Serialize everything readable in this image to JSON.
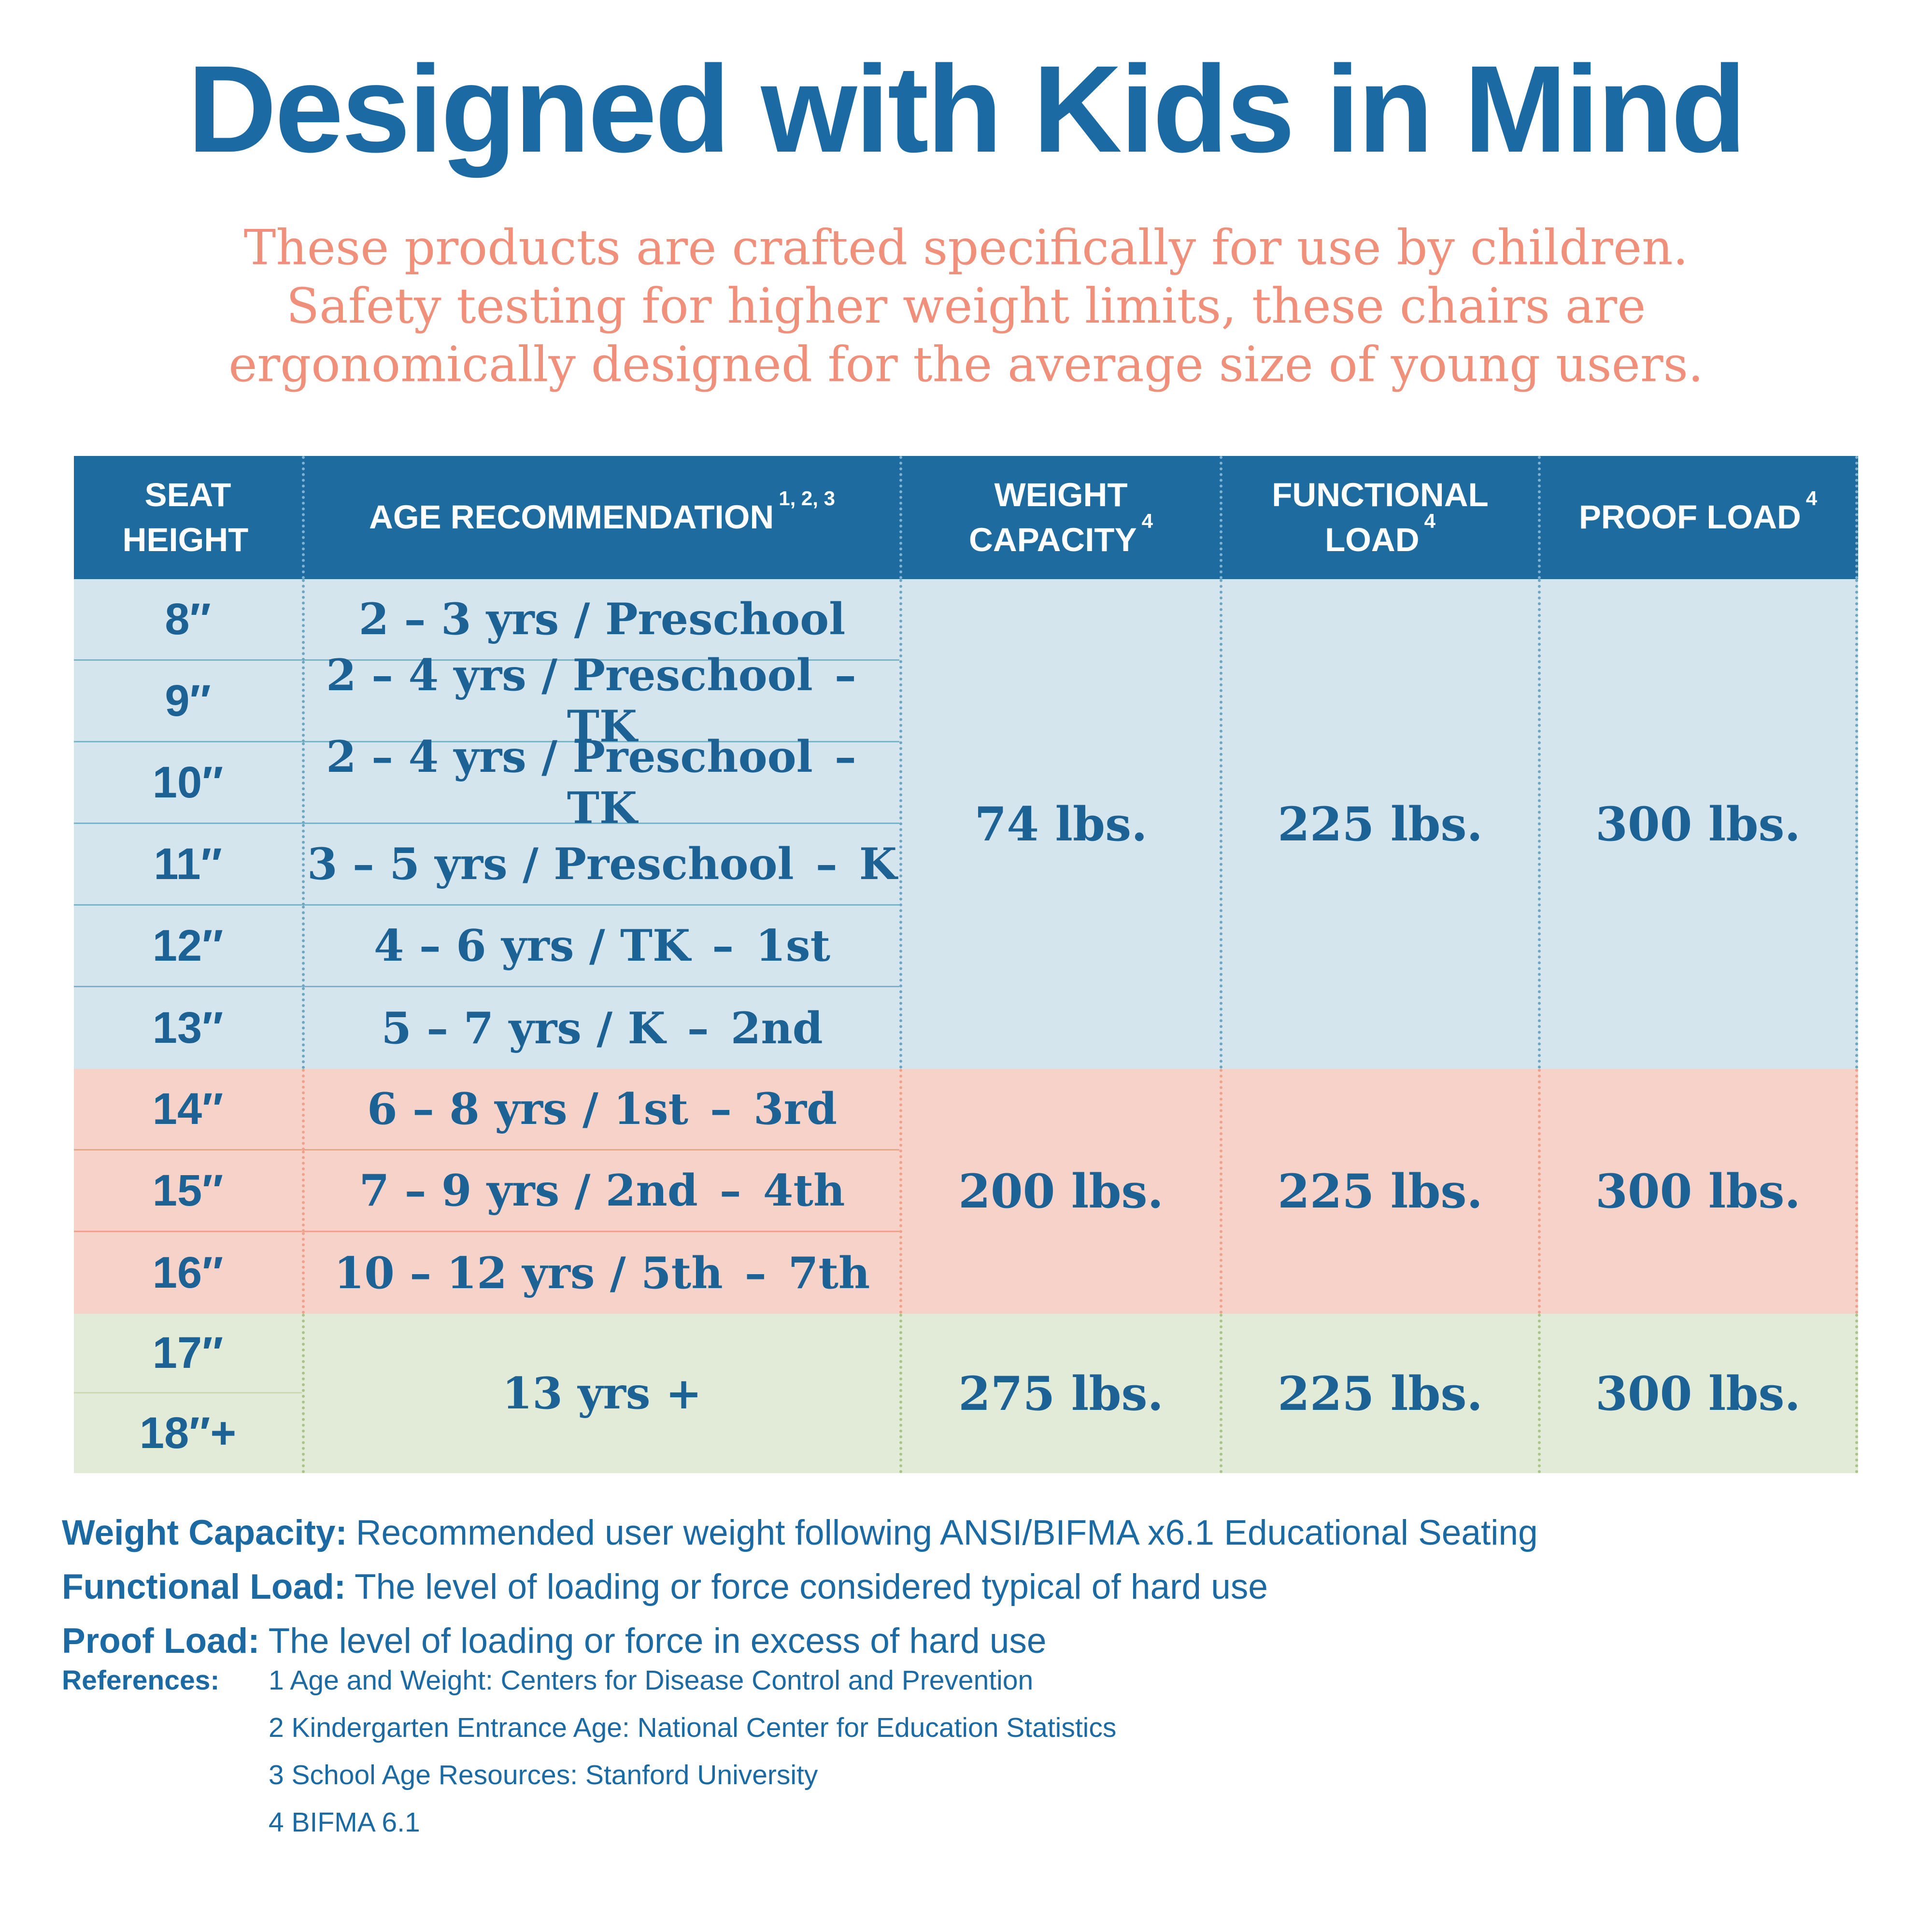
{
  "title": "Designed with Kids in Mind",
  "subtitle": [
    "These products are crafted specifically for use by children.",
    "Safety testing for higher weight limits, these chairs are",
    "ergonomically designed for the average size of young users."
  ],
  "table": {
    "headers": [
      {
        "label": "SEAT HEIGHT",
        "sup": ""
      },
      {
        "label": "AGE RECOMMENDATION",
        "sup": "1, 2, 3"
      },
      {
        "label": "WEIGHT CAPACITY",
        "sup": "4"
      },
      {
        "label": "FUNCTIONAL LOAD",
        "sup": "4"
      },
      {
        "label": "PROOF LOAD",
        "sup": "4"
      }
    ],
    "groups": [
      {
        "name": "preschool-to-2nd",
        "rows": [
          {
            "height": "8″",
            "age": "2 – 3 yrs / Preschool"
          },
          {
            "height": "9″",
            "age": "2 – 4 yrs / Preschool – TK"
          },
          {
            "height": "10″",
            "age": "2 – 4 yrs / Preschool – TK"
          },
          {
            "height": "11″",
            "age": "3 – 5 yrs / Preschool – K"
          },
          {
            "height": "12″",
            "age": "4 – 6 yrs / TK – 1st"
          },
          {
            "height": "13″",
            "age": "5 – 7 yrs / K – 2nd"
          }
        ],
        "values": {
          "weight": "74 lbs.",
          "functional": "225 lbs.",
          "proof": "300 lbs."
        }
      },
      {
        "name": "1st-to-7th",
        "rows": [
          {
            "height": "14″",
            "age": "6 – 8 yrs / 1st – 3rd"
          },
          {
            "height": "15″",
            "age": "7 – 9 yrs / 2nd – 4th"
          },
          {
            "height": "16″",
            "age": "10 – 12 yrs / 5th – 7th"
          }
        ],
        "values": {
          "weight": "200 lbs.",
          "functional": "225 lbs.",
          "proof": "300 lbs."
        }
      },
      {
        "name": "13-plus",
        "rows": [
          {
            "height": "17″"
          },
          {
            "height": "18″+"
          }
        ],
        "age_merged": "13 yrs +",
        "values": {
          "weight": "275 lbs.",
          "functional": "225 lbs.",
          "proof": "300 lbs."
        }
      }
    ]
  },
  "definitions": [
    {
      "term": "Weight Capacity:",
      "text": "Recommended user weight following ANSI/BIFMA x6.1 Educational Seating"
    },
    {
      "term": "Functional Load:",
      "text": "The level of loading or force considered typical of hard use"
    },
    {
      "term": "Proof Load:",
      "text": "The level of loading or force in excess of hard use"
    }
  ],
  "references": {
    "label": "References:",
    "items": [
      "1 Age and Weight: Centers for Disease Control and Prevention",
      "2 Kindergarten Entrance Age: National Center for Education Statistics",
      "3 School Age Resources: Stanford University",
      "4 BIFMA 6.1"
    ]
  },
  "colors": {
    "title_blue": "#1c6aa4",
    "subtitle_coral": "#f0907a",
    "header_bg": "#1d6b9f",
    "header_text": "#ffffff",
    "table_text": "#1d6295",
    "group_blue_bg": "#d5e5ee",
    "group_salmon_bg": "#f7d2c8",
    "group_green_bg": "#e2ebd7",
    "dot_header": "#7fb3d3",
    "dot_blue": "#6ea6c2",
    "dot_salmon": "#efa28b",
    "dot_green": "#a9c489",
    "sep_blue": "#79b5c8",
    "sep_salmon": "#efa28b",
    "sep_green": "#c9dab2"
  }
}
